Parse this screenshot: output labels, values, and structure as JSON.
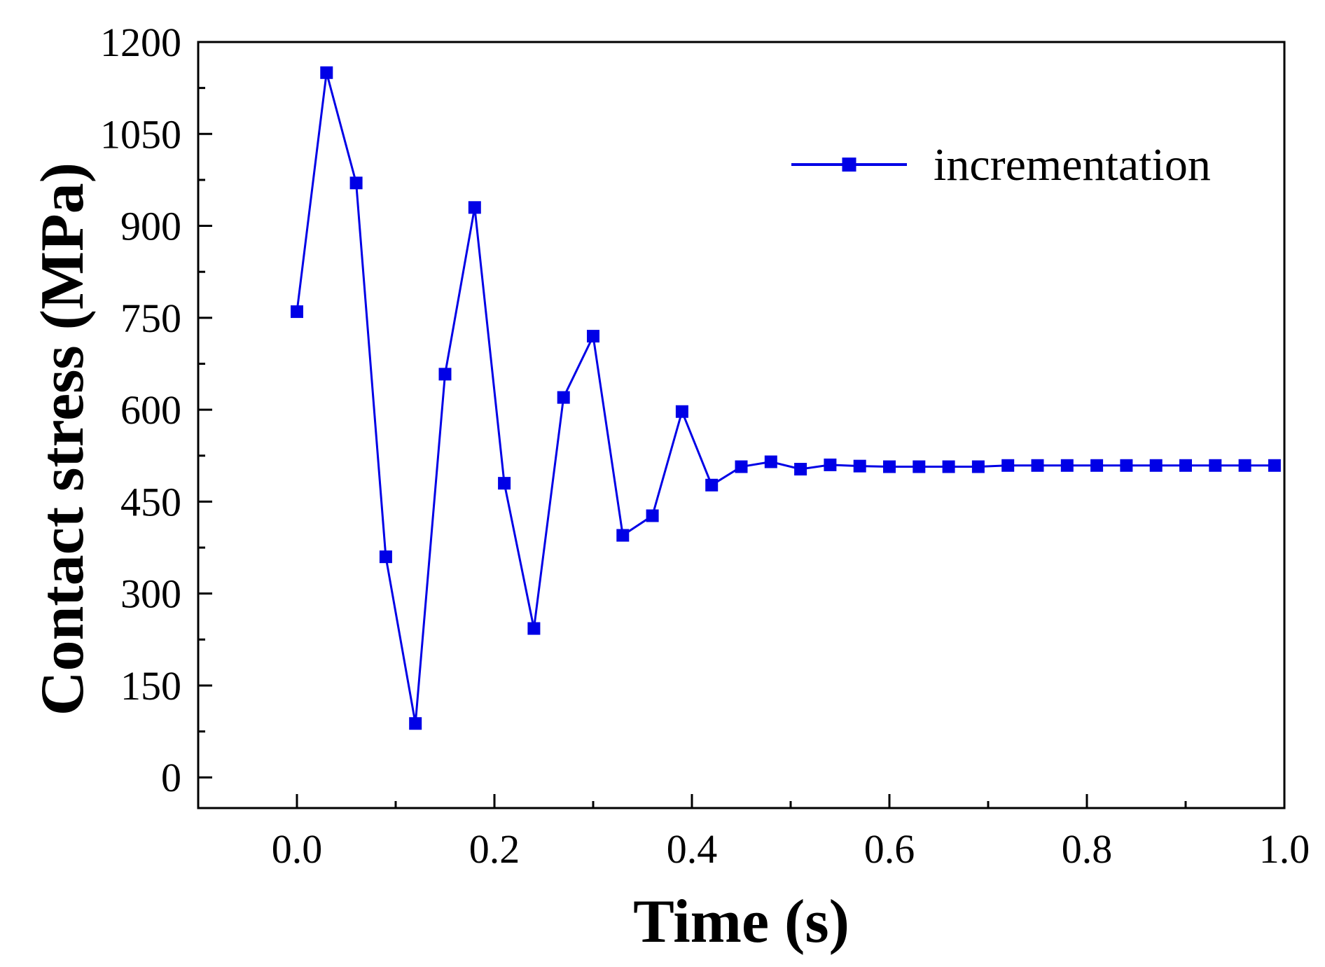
{
  "chart_data": {
    "type": "line",
    "title": "",
    "xlabel": "Time (s)",
    "ylabel": "Contact stress (MPa)",
    "xlim": [
      -0.1,
      1.0
    ],
    "ylim": [
      -50,
      1200
    ],
    "xticks": [
      0.0,
      0.2,
      0.4,
      0.6,
      0.8,
      1.0
    ],
    "xtick_labels": [
      "0.0",
      "0.2",
      "0.4",
      "0.6",
      "0.8",
      "1.0"
    ],
    "yticks": [
      0,
      150,
      300,
      450,
      600,
      750,
      900,
      1050,
      1200
    ],
    "ytick_labels": [
      "0",
      "150",
      "300",
      "450",
      "600",
      "750",
      "900",
      "1050",
      "1200"
    ],
    "grid": false,
    "legend_position": "top-right",
    "series": [
      {
        "name": "incrementation",
        "color": "#0000e6",
        "marker": "square",
        "x": [
          0.0,
          0.03,
          0.06,
          0.09,
          0.12,
          0.15,
          0.18,
          0.21,
          0.24,
          0.27,
          0.3,
          0.33,
          0.36,
          0.39,
          0.42,
          0.45,
          0.48,
          0.51,
          0.54,
          0.57,
          0.6,
          0.63,
          0.66,
          0.69,
          0.72,
          0.75,
          0.78,
          0.81,
          0.84,
          0.87,
          0.9,
          0.93,
          0.96,
          0.99
        ],
        "y": [
          760,
          1150,
          970,
          360,
          88,
          658,
          930,
          480,
          243,
          620,
          720,
          395,
          427,
          597,
          477,
          507,
          515,
          503,
          510,
          508,
          507,
          507,
          507,
          507,
          509,
          509,
          509,
          509,
          509,
          509,
          509,
          509,
          509,
          509
        ]
      }
    ]
  }
}
